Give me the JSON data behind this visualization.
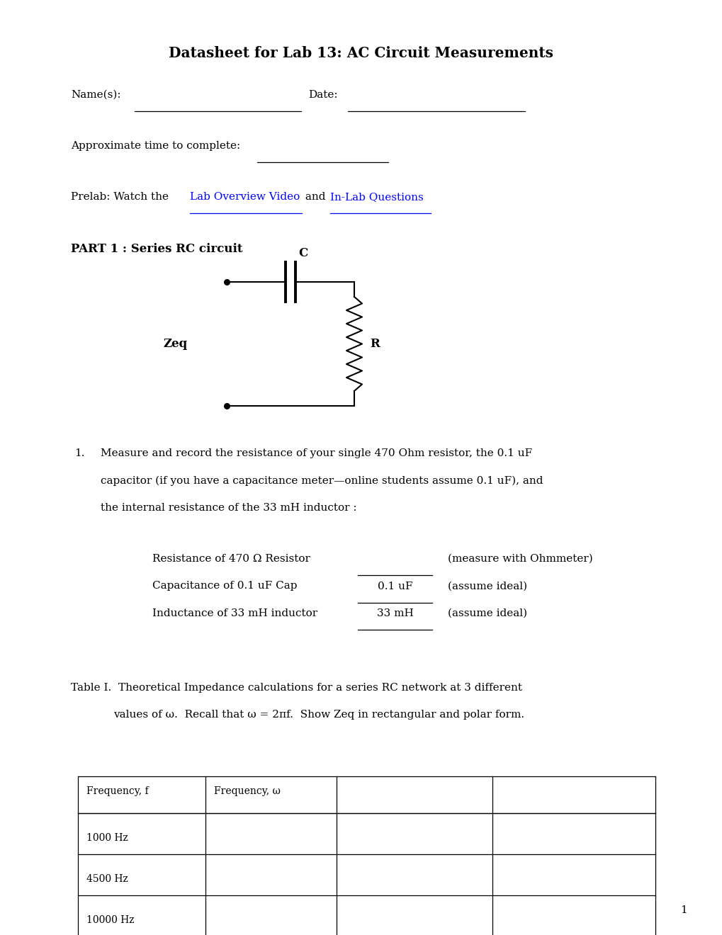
{
  "title": "Datasheet for Lab 13: AC Circuit Measurements",
  "background_color": "#ffffff",
  "name_label": "Name(s):",
  "date_label": "Date:",
  "approx_time_label": "Approximate time to complete:",
  "prelab_text": "Prelab: Watch the ",
  "link1_text": "Lab Overview Video",
  "link1_color": "#0000FF",
  "and_text": " and ",
  "link2_text": "In-Lab Questions",
  "link2_color": "#0000FF",
  "part1_title": "PART 1 : Series RC circuit",
  "item1_line1": "Measure and record the resistance of your single 470 Ohm resistor, the 0.1 uF",
  "item1_line2": "capacitor (if you have a capacitance meter—online students assume 0.1 uF), and",
  "item1_line3": "the internal resistance of the 33 mH inductor :",
  "res_label": "Resistance of 470 Ω Resistor",
  "res_note": "(measure with Ohmmeter)",
  "cap_label": "Capacitance of 0.1 uF Cap",
  "cap_value": "0.1 uF",
  "cap_note": "(assume ideal)",
  "ind_label": "Inductance of 33 mH inductor",
  "ind_value": "33 mH",
  "ind_note": "(assume ideal)",
  "table_caption_line1": "Table I.  Theoretical Impedance calculations for a series RC network at 3 different",
  "table_caption_line2": "values of ω.  Recall that ω = 2πf.  Show Zeq in rectangular and polar form.",
  "table_headers": [
    "Frequency, f",
    "Frequency, ω",
    "",
    ""
  ],
  "table_rows": [
    [
      "1000 Hz",
      "",
      "",
      ""
    ],
    [
      "4500 Hz",
      "",
      "",
      ""
    ],
    [
      "10000 Hz",
      "",
      "",
      ""
    ]
  ],
  "page_number": "1",
  "font_family": "DejaVu Serif"
}
